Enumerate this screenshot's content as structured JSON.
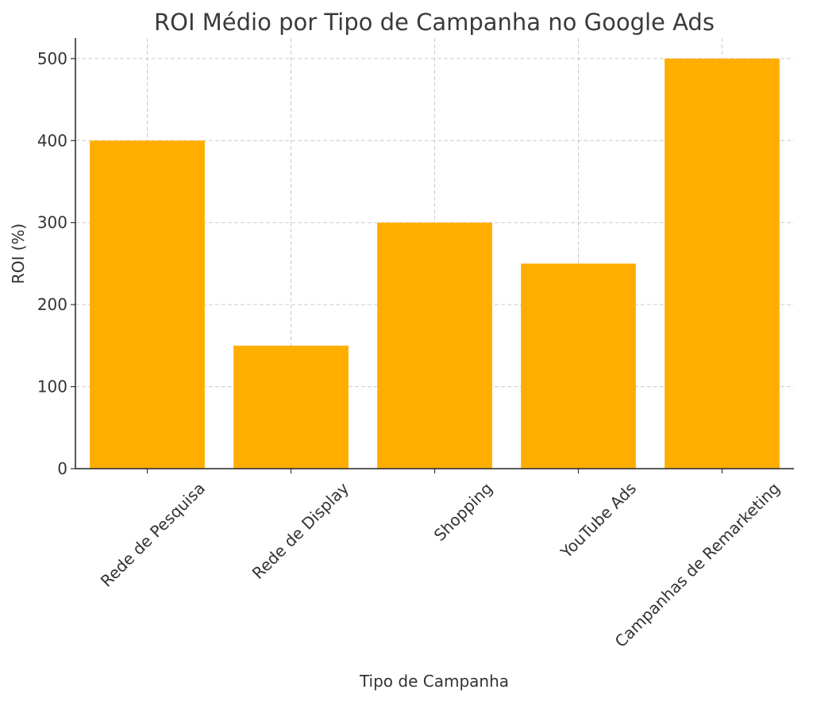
{
  "chart_data": {
    "type": "bar",
    "title": "ROI Médio por Tipo de Campanha no Google Ads",
    "xlabel": "Tipo de Campanha",
    "ylabel": "ROI (%)",
    "categories": [
      "Rede de Pesquisa",
      "Rede de Display",
      "Shopping",
      "YouTube Ads",
      "Campanhas de Remarketing"
    ],
    "values": [
      400,
      150,
      300,
      250,
      500
    ],
    "ylim": [
      0,
      525
    ],
    "yticks": [
      0,
      100,
      200,
      300,
      400,
      500
    ],
    "grid": true,
    "bar_color": "#FFAE00"
  }
}
